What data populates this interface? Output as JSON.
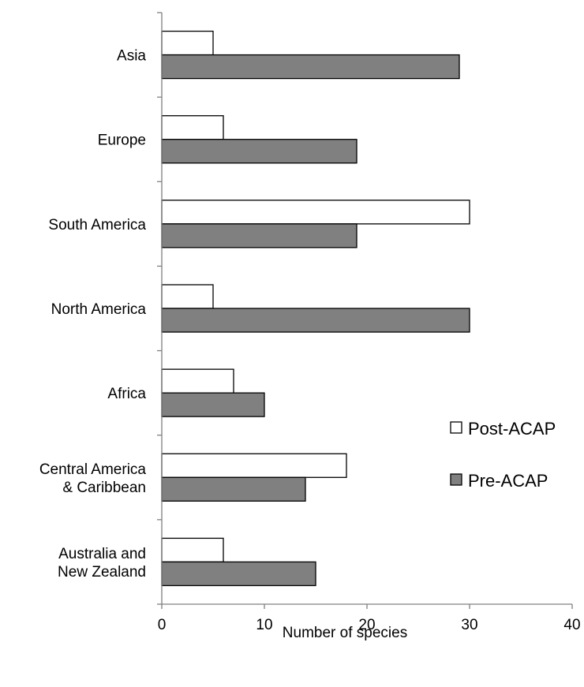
{
  "chart_data": {
    "type": "bar",
    "orientation": "horizontal",
    "categories": [
      [
        "Asia"
      ],
      [
        "Europe"
      ],
      [
        "South America"
      ],
      [
        "North America"
      ],
      [
        "Africa"
      ],
      [
        "Central America",
        "& Caribbean"
      ],
      [
        "Australia and",
        "New Zealand"
      ]
    ],
    "series": [
      {
        "name": "Post-ACAP",
        "color": "#ffffff",
        "values": [
          5,
          6,
          30,
          5,
          7,
          18,
          6
        ]
      },
      {
        "name": "Pre-ACAP",
        "color": "#808080",
        "values": [
          29,
          19,
          19,
          30,
          10,
          14,
          15
        ]
      }
    ],
    "xlabel": "Number of species",
    "xlim": [
      0,
      40
    ],
    "xticks": [
      0,
      10,
      20,
      30,
      40
    ],
    "grid": false,
    "legend_position": "right"
  }
}
